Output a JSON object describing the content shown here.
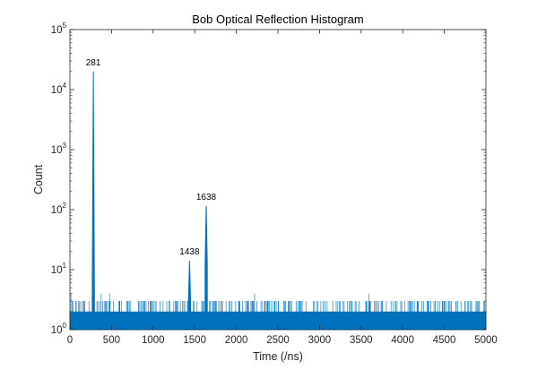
{
  "chart_data": {
    "type": "bar",
    "title": "Bob Optical Reflection Histogram",
    "xlabel": "Time (/ns)",
    "ylabel": "Count",
    "xlim": [
      0,
      5000
    ],
    "ylim": [
      1,
      100000
    ],
    "yscale": "log",
    "grid": false,
    "box": true,
    "series_color": "#0072BD",
    "xticks": [
      0,
      500,
      1000,
      1500,
      2000,
      2500,
      3000,
      3500,
      4000,
      4500,
      5000
    ],
    "yticks": [
      {
        "base": "10",
        "exp": "0",
        "value": 1
      },
      {
        "base": "10",
        "exp": "1",
        "value": 10
      },
      {
        "base": "10",
        "exp": "2",
        "value": 100
      },
      {
        "base": "10",
        "exp": "3",
        "value": 1000
      },
      {
        "base": "10",
        "exp": "4",
        "value": 10000
      },
      {
        "base": "10",
        "exp": "5",
        "value": 100000
      }
    ],
    "baseline_noise": {
      "range": [
        0,
        5000
      ],
      "typical_count": 2,
      "max_count": 3,
      "occasional_count": 4
    },
    "peaks": [
      {
        "label": "281",
        "x": 281,
        "y": 20000,
        "base": 4
      },
      {
        "label": "1438",
        "x": 1438,
        "y": 14,
        "base": 3
      },
      {
        "label": "1638",
        "x": 1638,
        "y": 115,
        "base": 12
      }
    ]
  }
}
